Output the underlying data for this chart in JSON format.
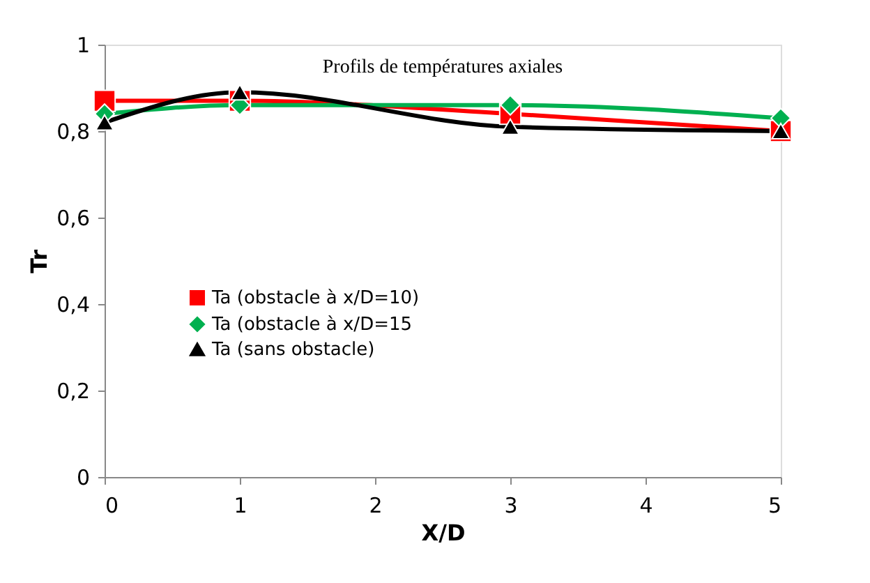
{
  "chart_data": {
    "type": "line",
    "title": "Profils de températures axiales",
    "xlabel": "X/D",
    "ylabel": "Tr",
    "x": [
      0,
      1,
      3,
      5
    ],
    "series": [
      {
        "name": "Ta (obstacle à x/D=10)",
        "color": "#ff0000",
        "marker": "square",
        "values": [
          0.87,
          0.87,
          0.84,
          0.8
        ]
      },
      {
        "name": "Ta (obstacle à x/D=15",
        "color": "#00b050",
        "marker": "diamond",
        "values": [
          0.84,
          0.86,
          0.86,
          0.83
        ]
      },
      {
        "name": "Ta (sans obstacle)",
        "color": "#000000",
        "marker": "triangle",
        "values": [
          0.82,
          0.89,
          0.81,
          0.8
        ]
      }
    ],
    "xlim": [
      0,
      5
    ],
    "xticks": [
      0,
      1,
      2,
      3,
      4,
      5
    ],
    "ylim": [
      0,
      1
    ],
    "yticks": [
      {
        "value": 0,
        "label": "0"
      },
      {
        "value": 0.2,
        "label": "0,2"
      },
      {
        "value": 0.4,
        "label": "0,4"
      },
      {
        "value": 0.6,
        "label": "0,6"
      },
      {
        "value": 0.8,
        "label": "0,8"
      },
      {
        "value": 1,
        "label": "1"
      }
    ],
    "grid": false,
    "legend": "left",
    "line_style": "solid"
  }
}
